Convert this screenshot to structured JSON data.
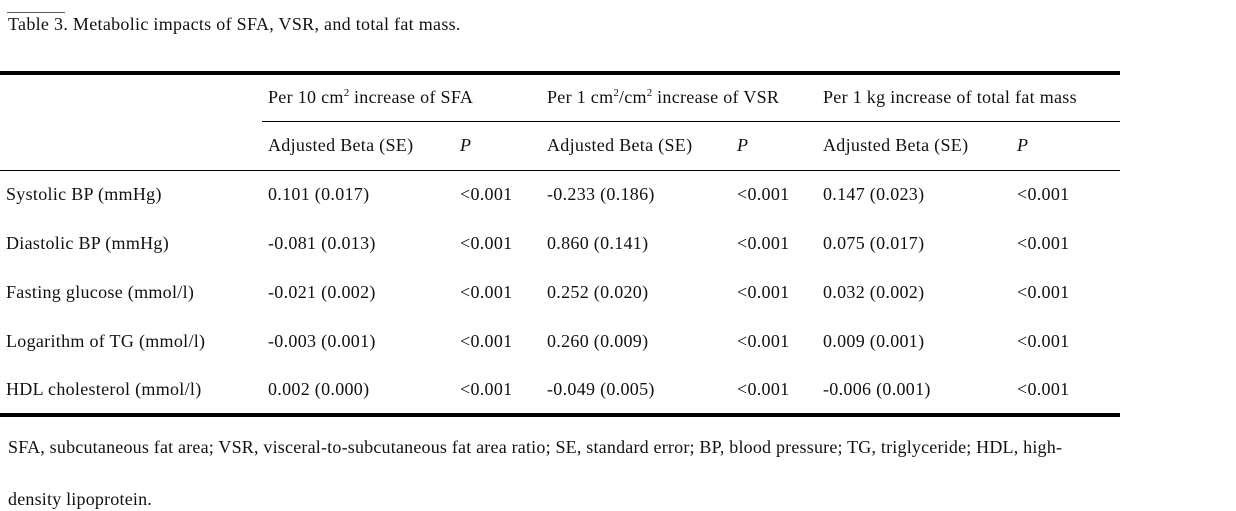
{
  "page": {
    "background": "#ffffff",
    "text_color": "#111111",
    "rule_color": "#000000"
  },
  "caption": {
    "label": "Table 3",
    "rest": ". Metabolic impacts of SFA, VSR, and total fat mass."
  },
  "table": {
    "column_groups": [
      {
        "title_segments": [
          {
            "t": "Per 10 cm"
          },
          {
            "sup": "2"
          },
          {
            "t": " increase of SFA"
          }
        ]
      },
      {
        "title_segments": [
          {
            "t": "Per 1 cm"
          },
          {
            "sup": "2"
          },
          {
            "t": "/cm"
          },
          {
            "sup": "2"
          },
          {
            "t": " increase of VSR"
          }
        ]
      },
      {
        "title_segments": [
          {
            "t": "Per 1 kg increase of total fat mass"
          }
        ]
      }
    ],
    "sub_headers": {
      "beta": "Adjusted Beta (SE)",
      "p": "P"
    },
    "rows": [
      {
        "label": "Systolic BP (mmHg)",
        "cells": [
          "0.101 (0.017)",
          "<0.001",
          "-0.233 (0.186)",
          "<0.001",
          "0.147 (0.023)",
          "<0.001"
        ]
      },
      {
        "label": "Diastolic BP (mmHg)",
        "cells": [
          "-0.081 (0.013)",
          "<0.001",
          "0.860 (0.141)",
          "<0.001",
          "0.075 (0.017)",
          "<0.001"
        ]
      },
      {
        "label": "Fasting glucose (mmol/l)",
        "cells": [
          "-0.021 (0.002)",
          "<0.001",
          "0.252 (0.020)",
          "<0.001",
          "0.032 (0.002)",
          "<0.001"
        ]
      },
      {
        "label": "Logarithm of TG (mmol/l)",
        "cells": [
          "-0.003 (0.001)",
          "<0.001",
          "0.260 (0.009)",
          "<0.001",
          "0.009 (0.001)",
          "<0.001"
        ]
      },
      {
        "label": "HDL cholesterol (mmol/l)",
        "cells": [
          "0.002 (0.000)",
          "<0.001",
          "-0.049 (0.005)",
          "<0.001",
          "-0.006 (0.001)",
          "<0.001"
        ]
      }
    ]
  },
  "footnote": {
    "lines": [
      "SFA, subcutaneous fat area; VSR, visceral-to-subcutaneous fat area ratio; SE, standard error; BP, blood pressure; TG, triglyceride; HDL, high-",
      "density lipoprotein."
    ]
  }
}
